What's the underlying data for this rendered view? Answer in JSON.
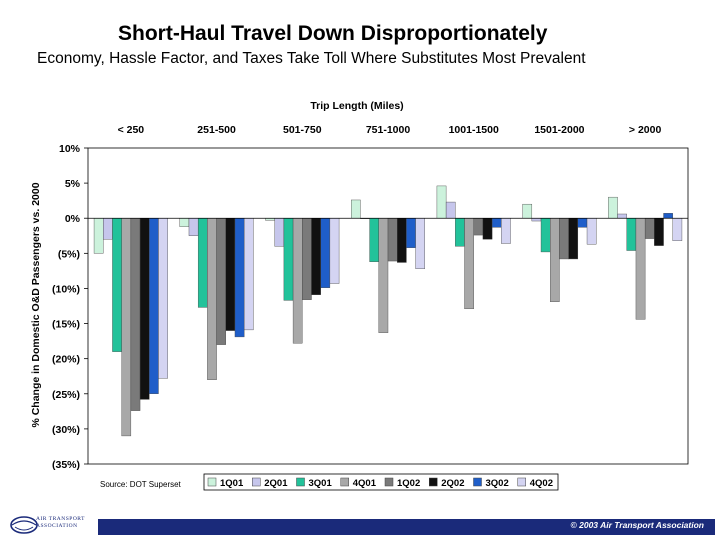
{
  "header": {
    "title": "Short-Haul Travel Down Disproportionately",
    "subtitle": "Economy, Hassle Factor, and Taxes Take Toll Where Substitutes Most Prevalent"
  },
  "footer": {
    "copyright": "© 2003 Air Transport Association",
    "logo_line1": "AIR TRANSPORT",
    "logo_line2": "ASSOCIATION"
  },
  "chart_data": {
    "type": "bar",
    "title": "Trip Length (Miles)",
    "ylabel": "% Change in Domestic O&D Passengers vs. 2000",
    "source": "Source: DOT Superset",
    "categories": [
      "< 250",
      "251-500",
      "501-750",
      "751-1000",
      "1001-1500",
      "1501-2000",
      "> 2000"
    ],
    "ylim": [
      -35,
      10
    ],
    "ytick_values": [
      10,
      5,
      0,
      -5,
      -10,
      -15,
      -20,
      -25,
      -30,
      -35
    ],
    "ytick_labels": [
      "10%",
      "5%",
      "0%",
      "(5%)",
      "(10%)",
      "(15%)",
      "(20%)",
      "(25%)",
      "(30%)",
      "(35%)"
    ],
    "legend_position": "bottom-right",
    "series": [
      {
        "name": "1Q01",
        "color": "#ccf2dc",
        "values": [
          -5.0,
          -1.2,
          -0.3,
          2.6,
          4.6,
          2.0,
          3.0
        ]
      },
      {
        "name": "2Q01",
        "color": "#c6c6ec",
        "values": [
          -3.0,
          -2.5,
          -4.0,
          0.0,
          2.3,
          -0.4,
          0.6
        ]
      },
      {
        "name": "3Q01",
        "color": "#22c29a",
        "values": [
          -19.0,
          -12.7,
          -11.7,
          -6.2,
          -4.0,
          -4.8,
          -4.6
        ]
      },
      {
        "name": "4Q01",
        "color": "#a8a8a8",
        "values": [
          -31.0,
          -23.0,
          -17.8,
          -16.3,
          -12.9,
          -11.9,
          -14.4
        ]
      },
      {
        "name": "1Q02",
        "color": "#7a7a7a",
        "values": [
          -27.4,
          -18.0,
          -11.6,
          -6.1,
          -2.4,
          -5.8,
          -2.9
        ]
      },
      {
        "name": "2Q02",
        "color": "#111111",
        "values": [
          -25.8,
          -16.0,
          -10.9,
          -6.3,
          -3.0,
          -5.8,
          -3.9
        ]
      },
      {
        "name": "3Q02",
        "color": "#1f5ec9",
        "values": [
          -25.0,
          -16.9,
          -9.9,
          -4.2,
          -1.3,
          -1.3,
          0.7
        ]
      },
      {
        "name": "4Q02",
        "color": "#d4d4f2",
        "values": [
          -22.8,
          -15.9,
          -9.3,
          -7.2,
          -3.6,
          -3.7,
          -3.2
        ]
      }
    ]
  }
}
